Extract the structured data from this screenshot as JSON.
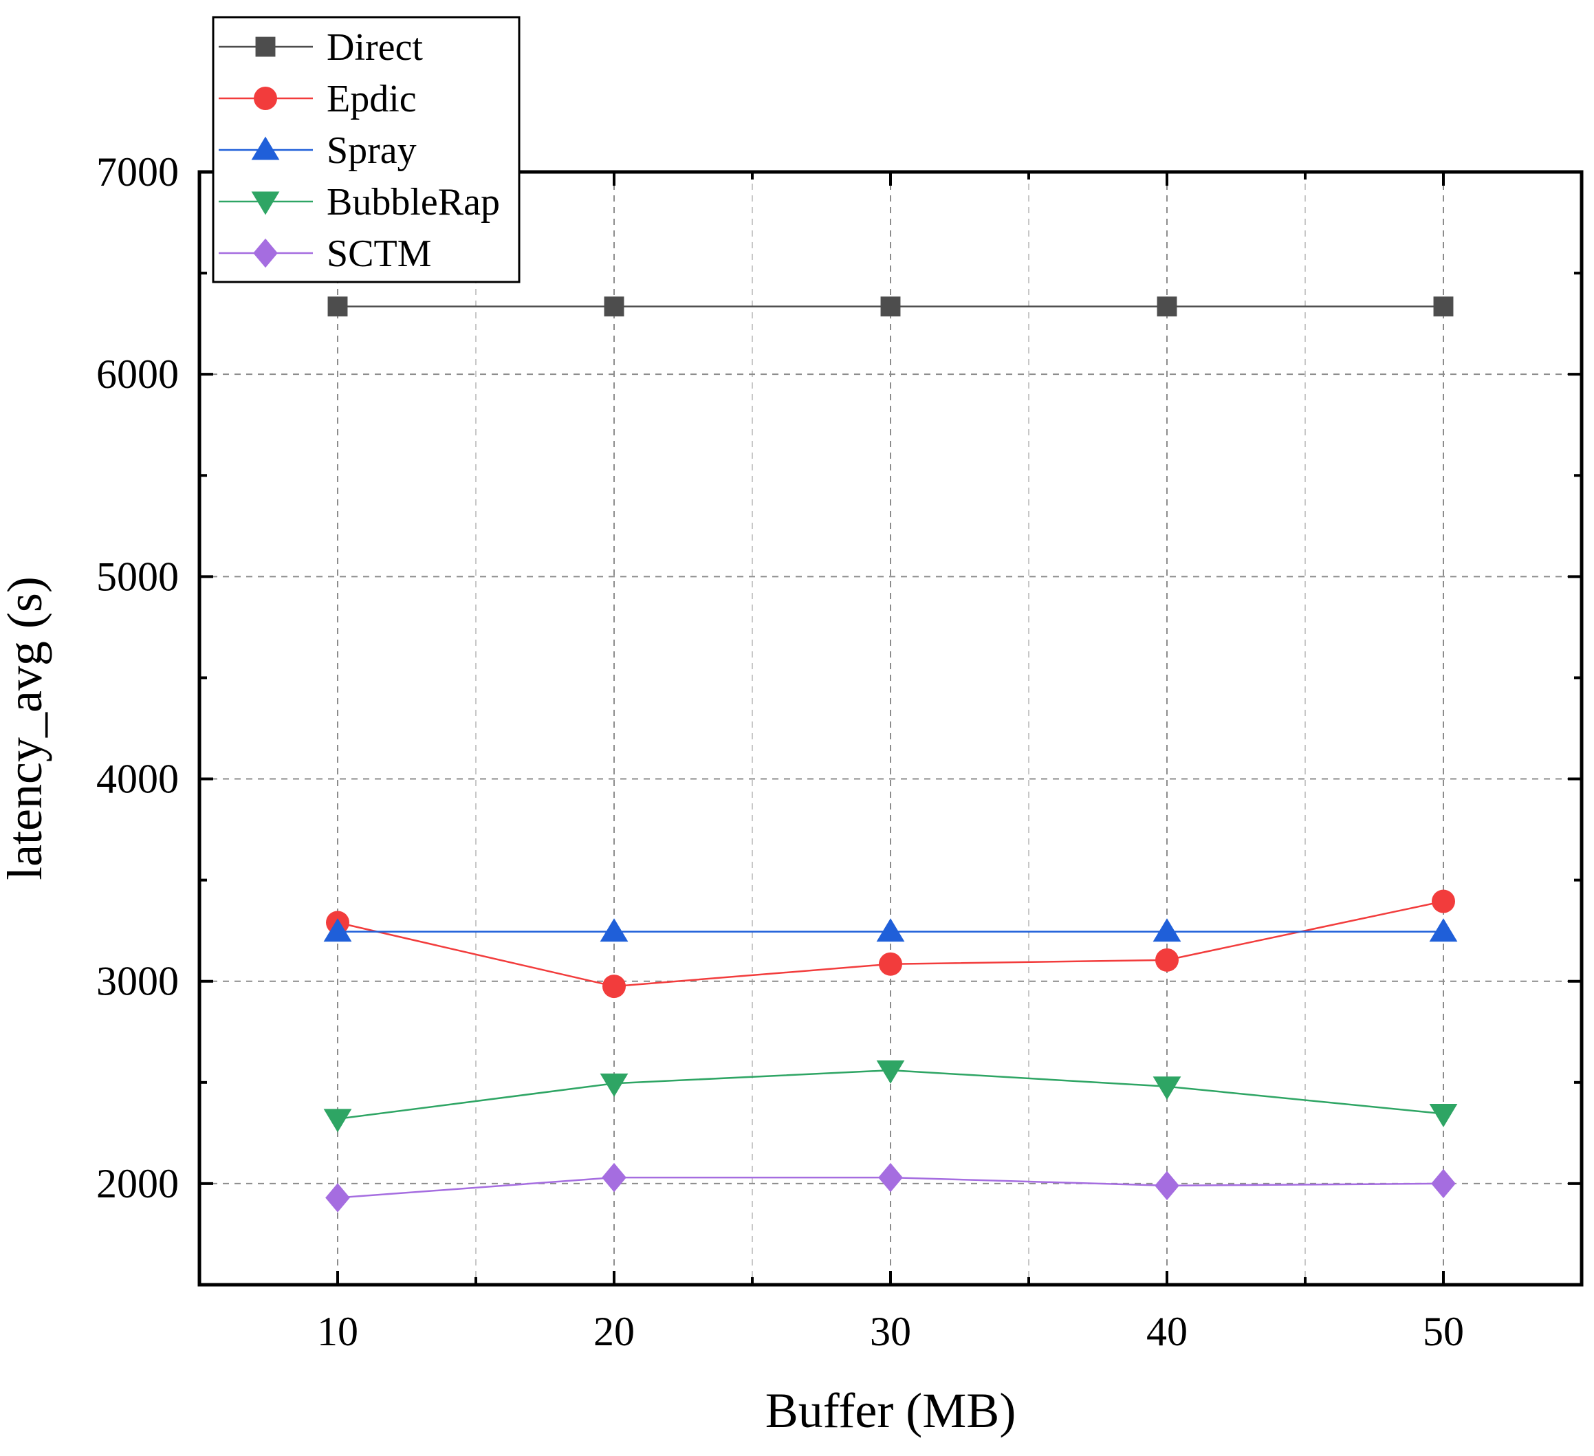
{
  "chart_data": {
    "type": "line",
    "title": "",
    "xlabel": "Buffer (MB)",
    "ylabel": "latency_avg (s)",
    "x": [
      10,
      20,
      30,
      40,
      50
    ],
    "xlim": [
      5,
      55
    ],
    "ylim": [
      1500,
      7000
    ],
    "xticks": [
      10,
      20,
      30,
      40,
      50
    ],
    "yticks": [
      2000,
      3000,
      4000,
      5000,
      6000,
      7000
    ],
    "grid": true,
    "legend_position": "top-left",
    "series": [
      {
        "name": "Direct",
        "marker": "square",
        "color": "#4d4d4d",
        "values": [
          6335,
          6335,
          6335,
          6335,
          6335
        ]
      },
      {
        "name": "Epdic",
        "marker": "circle",
        "color": "#f23c3c",
        "values": [
          3290,
          2975,
          3085,
          3105,
          3395
        ]
      },
      {
        "name": "Spray",
        "marker": "triangle-up",
        "color": "#1f5fd9",
        "values": [
          3245,
          3245,
          3245,
          3245,
          3245
        ]
      },
      {
        "name": "BubbleRap",
        "marker": "triangle-down",
        "color": "#2ea564",
        "values": [
          2320,
          2495,
          2560,
          2480,
          2345
        ]
      },
      {
        "name": "SCTM",
        "marker": "diamond",
        "color": "#a56de0",
        "values": [
          1930,
          2030,
          2030,
          1990,
          2000
        ]
      }
    ]
  }
}
